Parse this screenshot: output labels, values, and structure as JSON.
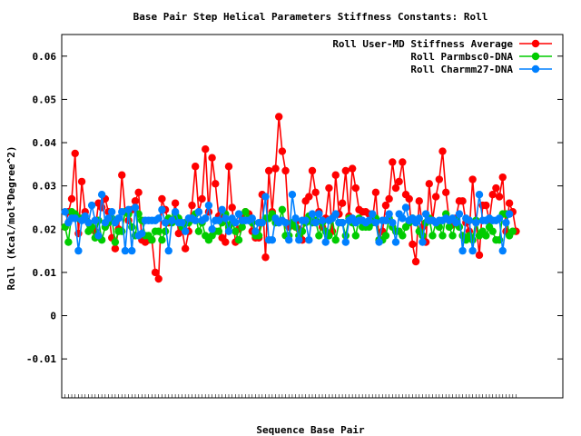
{
  "chart_data": {
    "type": "line",
    "title": "Base Pair Step Helical Parameters Stiffness Constants: Roll",
    "xlabel": "Sequence Base Pair",
    "ylabel": "Roll (Kcal/mol*Degree^2)",
    "ylim": [
      -0.019,
      0.065
    ],
    "yticks": [
      -0.01,
      0,
      0.01,
      0.02,
      0.03,
      0.04,
      0.05,
      0.06
    ],
    "ytick_labels": [
      "-0.01",
      "0",
      "0.01",
      "0.02",
      "0.03",
      "0.04",
      "0.05",
      "0.06"
    ],
    "xlim": [
      0,
      150
    ],
    "grid": false,
    "legend_position": "top-right",
    "series": [
      {
        "name": "Roll User-MD Stiffness Average",
        "color": "#ff0000",
        "values": [
          0.0205,
          0.024,
          0.027,
          0.0375,
          0.019,
          0.031,
          0.024,
          0.0215,
          0.02,
          0.0195,
          0.026,
          0.025,
          0.027,
          0.024,
          0.018,
          0.0155,
          0.02,
          0.0325,
          0.024,
          0.022,
          0.0245,
          0.0265,
          0.0285,
          0.0175,
          0.017,
          0.0175,
          0.0175,
          0.01,
          0.0085,
          0.027,
          0.0245,
          0.0215,
          0.022,
          0.026,
          0.019,
          0.02,
          0.0155,
          0.0195,
          0.0255,
          0.0345,
          0.024,
          0.027,
          0.0385,
          0.024,
          0.0365,
          0.0305,
          0.023,
          0.018,
          0.017,
          0.0345,
          0.025,
          0.017,
          0.02,
          0.0225,
          0.024,
          0.0235,
          0.0195,
          0.018,
          0.018,
          0.028,
          0.0135,
          0.0335,
          0.024,
          0.034,
          0.046,
          0.038,
          0.0335,
          0.0205,
          0.021,
          0.0215,
          0.02,
          0.0175,
          0.0265,
          0.0275,
          0.0335,
          0.0285,
          0.024,
          0.0205,
          0.0225,
          0.0295,
          0.0195,
          0.0325,
          0.0235,
          0.026,
          0.0335,
          0.023,
          0.034,
          0.0295,
          0.0245,
          0.024,
          0.024,
          0.0235,
          0.022,
          0.0285,
          0.0175,
          0.0195,
          0.0255,
          0.027,
          0.0355,
          0.0295,
          0.031,
          0.0355,
          0.028,
          0.027,
          0.0165,
          0.0125,
          0.0265,
          0.0205,
          0.017,
          0.0305,
          0.022,
          0.0275,
          0.0315,
          0.038,
          0.0285,
          0.022,
          0.021,
          0.0225,
          0.0265,
          0.0265,
          0.0215,
          0.0195,
          0.0315,
          0.0215,
          0.014,
          0.0255,
          0.0255,
          0.022,
          0.028,
          0.0295,
          0.0275,
          0.032,
          0.0195,
          0.026,
          0.024,
          0.0195
        ]
      },
      {
        "name": "Roll Parmbsc0-DNA",
        "color": "#00cc00",
        "values": [
          0.0205,
          0.017,
          0.024,
          0.0235,
          0.0225,
          0.0225,
          0.0225,
          0.0195,
          0.0205,
          0.018,
          0.022,
          0.0175,
          0.0205,
          0.0215,
          0.0225,
          0.017,
          0.0195,
          0.0195,
          0.024,
          0.0235,
          0.0205,
          0.0185,
          0.0235,
          0.022,
          0.0185,
          0.0185,
          0.0175,
          0.0195,
          0.0195,
          0.0175,
          0.0195,
          0.0225,
          0.0215,
          0.0235,
          0.0225,
          0.0205,
          0.0215,
          0.0215,
          0.0225,
          0.0235,
          0.0195,
          0.0215,
          0.0185,
          0.0175,
          0.0185,
          0.0195,
          0.0195,
          0.0215,
          0.0235,
          0.0205,
          0.0215,
          0.0195,
          0.0175,
          0.0205,
          0.024,
          0.0225,
          0.0215,
          0.0185,
          0.0185,
          0.0215,
          0.0225,
          0.0225,
          0.0235,
          0.0215,
          0.0215,
          0.0245,
          0.0185,
          0.0185,
          0.0215,
          0.0205,
          0.0185,
          0.0195,
          0.0215,
          0.023,
          0.0215,
          0.022,
          0.0185,
          0.0215,
          0.0195,
          0.0185,
          0.0225,
          0.0175,
          0.0215,
          0.0215,
          0.0185,
          0.0225,
          0.0215,
          0.0185,
          0.0225,
          0.0205,
          0.0205,
          0.0205,
          0.0215,
          0.0225,
          0.0175,
          0.0175,
          0.0185,
          0.0225,
          0.0205,
          0.0195,
          0.0195,
          0.0185,
          0.0205,
          0.0215,
          0.0225,
          0.022,
          0.0195,
          0.0185,
          0.0215,
          0.0225,
          0.0185,
          0.0215,
          0.0205,
          0.0185,
          0.0235,
          0.0205,
          0.0185,
          0.022,
          0.0205,
          0.0185,
          0.0175,
          0.0185,
          0.0175,
          0.022,
          0.0185,
          0.0195,
          0.0185,
          0.0205,
          0.0195,
          0.0175,
          0.0175,
          0.0235,
          0.0235,
          0.0185,
          0.0195
        ]
      },
      {
        "name": "Roll Charmm27-DNA",
        "color": "#0080ff",
        "values": [
          0.024,
          0.0215,
          0.0225,
          0.0225,
          0.015,
          0.022,
          0.023,
          0.0215,
          0.0255,
          0.022,
          0.0185,
          0.028,
          0.0215,
          0.0225,
          0.024,
          0.0215,
          0.0225,
          0.024,
          0.015,
          0.0245,
          0.015,
          0.025,
          0.0185,
          0.019,
          0.022,
          0.022,
          0.022,
          0.022,
          0.0225,
          0.0245,
          0.0215,
          0.015,
          0.022,
          0.024,
          0.0215,
          0.0215,
          0.0195,
          0.0225,
          0.0225,
          0.022,
          0.024,
          0.022,
          0.0225,
          0.0255,
          0.02,
          0.022,
          0.022,
          0.0245,
          0.0225,
          0.0195,
          0.0225,
          0.0215,
          0.0235,
          0.022,
          0.022,
          0.022,
          0.0225,
          0.0195,
          0.0215,
          0.0215,
          0.0275,
          0.0175,
          0.0175,
          0.0225,
          0.0215,
          0.022,
          0.0215,
          0.0175,
          0.028,
          0.0225,
          0.0175,
          0.022,
          0.022,
          0.0175,
          0.0235,
          0.0215,
          0.0235,
          0.022,
          0.017,
          0.022,
          0.0225,
          0.0235,
          0.0215,
          0.0215,
          0.017,
          0.022,
          0.0225,
          0.0215,
          0.022,
          0.022,
          0.0215,
          0.022,
          0.0235,
          0.0215,
          0.017,
          0.022,
          0.022,
          0.0235,
          0.0215,
          0.017,
          0.0235,
          0.0225,
          0.025,
          0.022,
          0.0225,
          0.0215,
          0.0225,
          0.017,
          0.0235,
          0.022,
          0.022,
          0.0215,
          0.022,
          0.022,
          0.0225,
          0.022,
          0.0225,
          0.0215,
          0.0235,
          0.015,
          0.0225,
          0.022,
          0.015,
          0.0215,
          0.028,
          0.022,
          0.022,
          0.0225,
          0.022,
          0.022,
          0.0225,
          0.015,
          0.0215,
          0.0235
        ]
      }
    ]
  }
}
